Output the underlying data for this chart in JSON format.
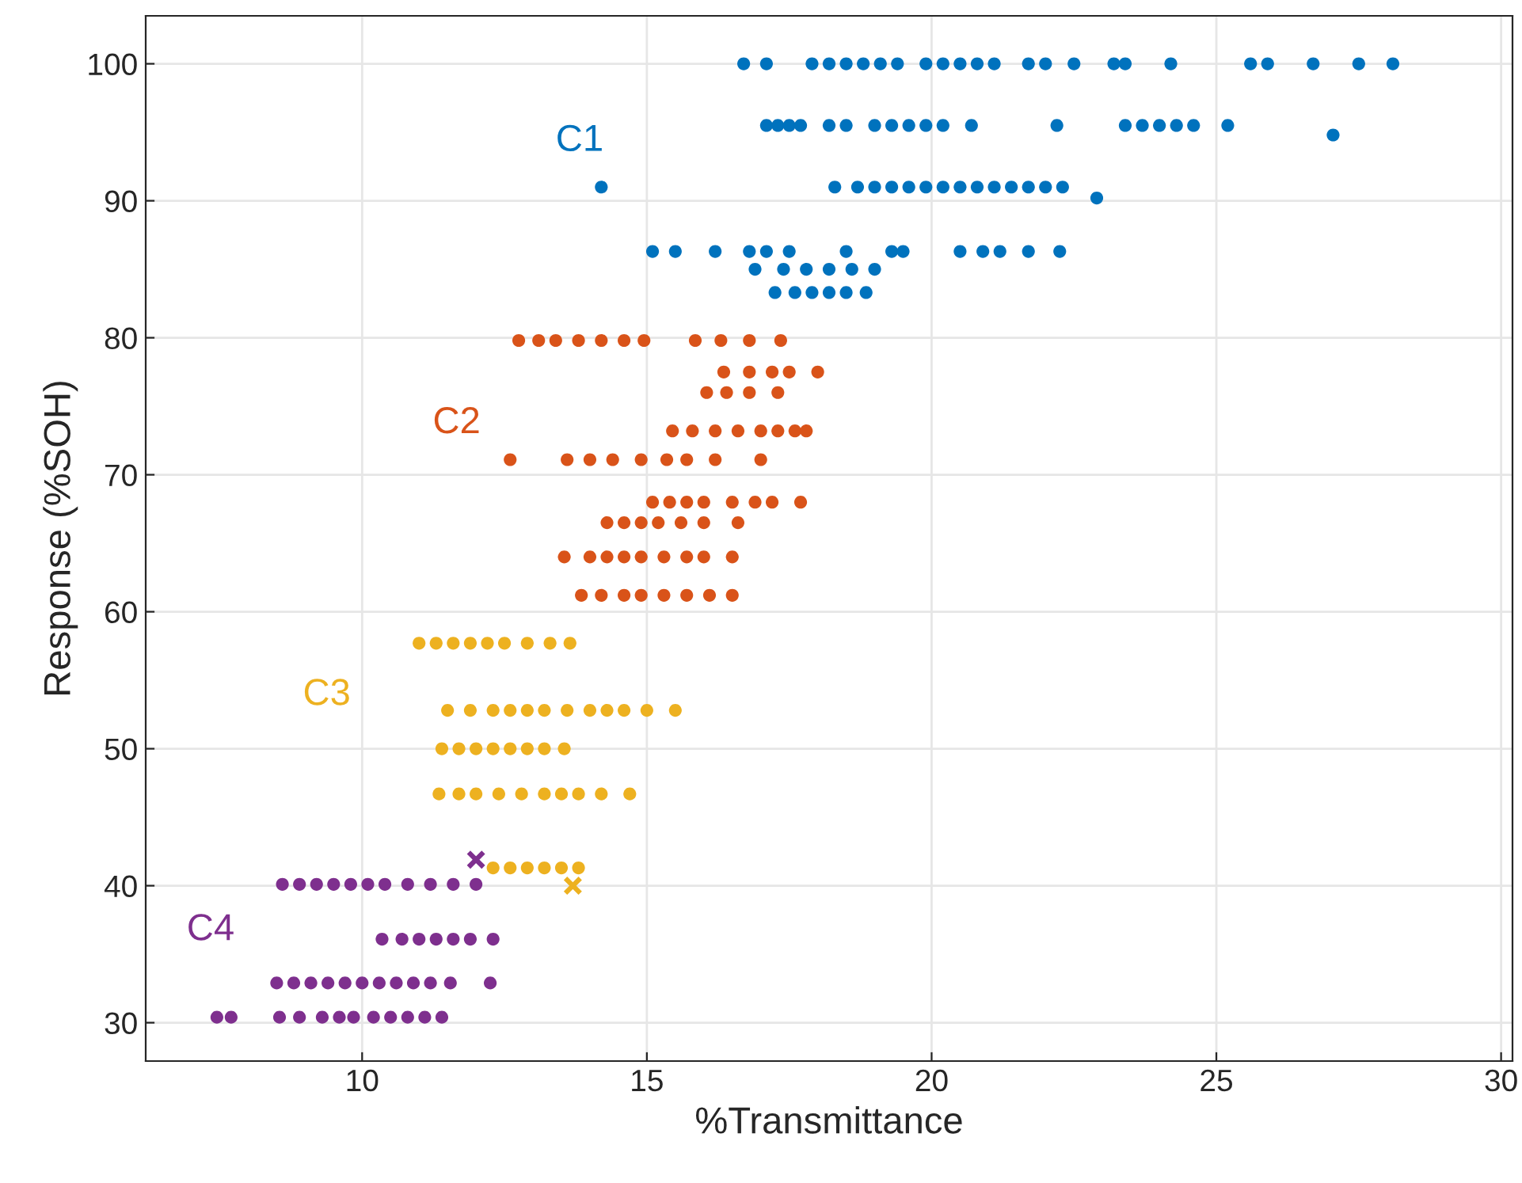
{
  "chart_data": {
    "type": "scatter",
    "xlabel": "%Transmittance",
    "ylabel": "Response (%SOH)",
    "xlim": [
      6.2,
      30.2
    ],
    "ylim": [
      27.2,
      103.5
    ],
    "xticks": [
      10,
      15,
      20,
      25,
      30
    ],
    "yticks": [
      30,
      40,
      50,
      60,
      70,
      80,
      90,
      100
    ],
    "grid": true,
    "legend": false,
    "marker": "circle",
    "series": [
      {
        "name": "C1",
        "color": "#0072bd",
        "x": [
          16.7,
          17.1,
          17.9,
          18.2,
          18.5,
          18.8,
          19.1,
          19.4,
          19.9,
          20.2,
          20.5,
          20.8,
          21.1,
          21.7,
          22.0,
          22.5,
          23.2,
          23.4,
          24.2,
          25.6,
          25.9,
          26.7,
          27.5,
          28.1,
          17.1,
          17.3,
          17.5,
          17.7,
          18.2,
          18.5,
          19.0,
          19.3,
          19.6,
          19.9,
          20.2,
          20.7,
          22.2,
          23.4,
          23.7,
          24.0,
          24.3,
          24.6,
          25.2,
          27.05,
          14.2,
          18.3,
          18.7,
          19.0,
          19.3,
          19.6,
          19.9,
          20.2,
          20.5,
          20.8,
          21.1,
          21.4,
          21.7,
          22.0,
          22.3,
          22.9,
          15.1,
          15.5,
          16.2,
          16.8,
          17.1,
          17.5,
          18.5,
          19.3,
          19.5,
          20.5,
          20.9,
          21.2,
          21.7,
          22.25,
          16.9,
          17.4,
          17.8,
          18.2,
          18.6,
          19.0,
          17.25,
          17.6,
          17.9,
          18.2,
          18.5,
          18.85
        ],
        "values": [
          100,
          100,
          100,
          100,
          100,
          100,
          100,
          100,
          100,
          100,
          100,
          100,
          100,
          100,
          100,
          100,
          100,
          100,
          100,
          100,
          100,
          100,
          100,
          100,
          95.5,
          95.5,
          95.5,
          95.5,
          95.5,
          95.5,
          95.5,
          95.5,
          95.5,
          95.5,
          95.5,
          95.5,
          95.5,
          95.5,
          95.5,
          95.5,
          95.5,
          95.5,
          95.5,
          94.8,
          91,
          91,
          91,
          91,
          91,
          91,
          91,
          91,
          91,
          91,
          91,
          91,
          91,
          91,
          91,
          90.2,
          86.3,
          86.3,
          86.3,
          86.3,
          86.3,
          86.3,
          86.3,
          86.3,
          86.3,
          86.3,
          86.3,
          86.3,
          86.3,
          86.3,
          85.0,
          85.0,
          85.0,
          85.0,
          85.0,
          85.0,
          83.3,
          83.3,
          83.3,
          83.3,
          83.3,
          83.3
        ]
      },
      {
        "name": "C2",
        "color": "#d95319",
        "x": [
          12.75,
          13.1,
          13.4,
          13.8,
          14.2,
          14.6,
          14.95,
          15.85,
          16.3,
          16.8,
          17.35,
          16.35,
          16.8,
          17.2,
          17.5,
          18.0,
          16.05,
          16.4,
          16.8,
          17.3,
          15.45,
          15.8,
          16.2,
          16.6,
          17.0,
          17.3,
          17.6,
          17.8,
          12.6,
          13.6,
          14.0,
          14.4,
          14.9,
          15.35,
          15.7,
          16.2,
          17.0,
          15.1,
          15.4,
          15.7,
          16.0,
          16.5,
          16.9,
          17.2,
          17.7,
          14.3,
          14.6,
          14.9,
          15.2,
          15.6,
          16.0,
          16.6,
          13.55,
          14.0,
          14.3,
          14.6,
          14.9,
          15.3,
          15.7,
          16.0,
          16.5,
          13.85,
          14.2,
          14.6,
          14.9,
          15.3,
          15.7,
          16.1,
          16.5
        ],
        "values": [
          79.8,
          79.8,
          79.8,
          79.8,
          79.8,
          79.8,
          79.8,
          79.8,
          79.8,
          79.8,
          79.8,
          77.5,
          77.5,
          77.5,
          77.5,
          77.5,
          76,
          76,
          76,
          76,
          73.2,
          73.2,
          73.2,
          73.2,
          73.2,
          73.2,
          73.2,
          73.2,
          71.1,
          71.1,
          71.1,
          71.1,
          71.1,
          71.1,
          71.1,
          71.1,
          71.1,
          68,
          68,
          68,
          68,
          68,
          68,
          68,
          68,
          66.5,
          66.5,
          66.5,
          66.5,
          66.5,
          66.5,
          66.5,
          64,
          64,
          64,
          64,
          64,
          64,
          64,
          64,
          64,
          61.2,
          61.2,
          61.2,
          61.2,
          61.2,
          61.2,
          61.2,
          61.2
        ]
      },
      {
        "name": "C3",
        "color": "#edb120",
        "x": [
          11.0,
          11.3,
          11.6,
          11.9,
          12.2,
          12.5,
          12.9,
          13.3,
          13.65,
          11.5,
          11.9,
          12.3,
          12.6,
          12.9,
          13.2,
          13.6,
          14.0,
          14.3,
          14.6,
          15.0,
          15.5,
          11.4,
          11.7,
          12.0,
          12.3,
          12.6,
          12.9,
          13.2,
          13.55,
          11.35,
          11.7,
          12.0,
          12.4,
          12.8,
          13.2,
          13.5,
          13.8,
          14.2,
          14.7,
          12.3,
          12.6,
          12.9,
          13.2,
          13.5,
          13.8
        ],
        "values": [
          57.7,
          57.7,
          57.7,
          57.7,
          57.7,
          57.7,
          57.7,
          57.7,
          57.7,
          52.8,
          52.8,
          52.8,
          52.8,
          52.8,
          52.8,
          52.8,
          52.8,
          52.8,
          52.8,
          52.8,
          52.8,
          50,
          50,
          50,
          50,
          50,
          50,
          50,
          50,
          46.7,
          46.7,
          46.7,
          46.7,
          46.7,
          46.7,
          46.7,
          46.7,
          46.7,
          46.7,
          41.3,
          41.3,
          41.3,
          41.3,
          41.3,
          41.3
        ]
      },
      {
        "color": "#edb120",
        "marker": "cross",
        "x": [
          13.7
        ],
        "values": [
          40.0
        ]
      },
      {
        "name": "C4",
        "color": "#7e2f8e",
        "x": [
          8.6,
          8.9,
          9.2,
          9.5,
          9.8,
          10.1,
          10.4,
          10.8,
          11.2,
          11.6,
          12.0,
          10.35,
          10.7,
          11.0,
          11.3,
          11.6,
          11.9,
          12.3,
          8.5,
          8.8,
          9.1,
          9.4,
          9.7,
          10.0,
          10.3,
          10.6,
          10.9,
          11.2,
          11.55,
          12.25,
          7.45,
          7.7,
          8.55,
          8.9,
          9.3,
          9.6,
          9.85,
          10.2,
          10.5,
          10.8,
          11.1,
          11.4
        ],
        "values": [
          40.1,
          40.1,
          40.1,
          40.1,
          40.1,
          40.1,
          40.1,
          40.1,
          40.1,
          40.1,
          40.1,
          36.1,
          36.1,
          36.1,
          36.1,
          36.1,
          36.1,
          36.1,
          32.9,
          32.9,
          32.9,
          32.9,
          32.9,
          32.9,
          32.9,
          32.9,
          32.9,
          32.9,
          32.9,
          32.9,
          30.4,
          30.4,
          30.4,
          30.4,
          30.4,
          30.4,
          30.4,
          30.4,
          30.4,
          30.4,
          30.4,
          30.4
        ]
      },
      {
        "color": "#7e2f8e",
        "marker": "cross",
        "x": [
          12.0
        ],
        "values": [
          41.9
        ]
      }
    ]
  }
}
